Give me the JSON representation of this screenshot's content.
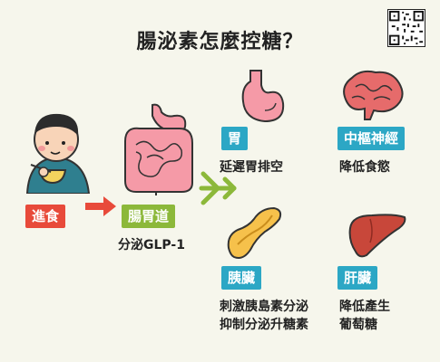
{
  "title": "腸泌素怎麼控糖？",
  "flow": {
    "eat_label": "進食",
    "gut_label": "腸胃道",
    "gut_desc": "分泌GLP-1"
  },
  "organs": {
    "stomach": {
      "label": "胃",
      "desc": "延遲胃排空"
    },
    "brain": {
      "label": "中樞神經",
      "desc": "降低食慾"
    },
    "pancreas": {
      "label": "胰臟",
      "desc_line1": "刺激胰島素分泌",
      "desc_line2": "抑制分泌升糖素"
    },
    "liver": {
      "label": "肝臟",
      "desc_line1": "降低產生",
      "desc_line2": "葡萄糖"
    }
  },
  "colors": {
    "red": "#e84a3a",
    "green": "#8cb83a",
    "blue": "#2ca7c5",
    "background": "#f6f6ec"
  }
}
